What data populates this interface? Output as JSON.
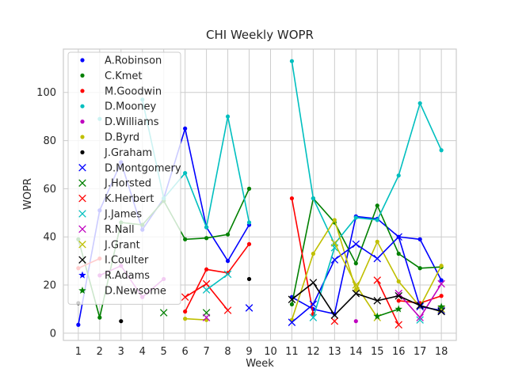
{
  "chart_data": {
    "type": "line",
    "title": "CHI Weekly WOPR",
    "xlabel": "Week",
    "ylabel": "WOPR",
    "xlim": [
      0.3,
      18.7
    ],
    "ylim": [
      -3,
      118
    ],
    "x_ticks": [
      1,
      2,
      3,
      4,
      5,
      6,
      7,
      8,
      9,
      10,
      11,
      12,
      13,
      14,
      15,
      16,
      17,
      18
    ],
    "y_ticks": [
      0,
      20,
      40,
      60,
      80,
      100
    ],
    "grid": true,
    "legend_position": "upper-left",
    "series": [
      {
        "name": "A.Robinson",
        "color": "#0000ff",
        "marker": "dot",
        "x": [
          1,
          2,
          3,
          4,
          5,
          6,
          7,
          8,
          9,
          11,
          12,
          13,
          14,
          15,
          16,
          17,
          18
        ],
        "y": [
          3.5,
          51,
          71,
          43,
          56,
          85,
          44,
          30,
          45,
          15,
          10,
          8,
          48.5,
          47.5,
          40,
          39,
          22
        ]
      },
      {
        "name": "C.Kmet",
        "color": "#008000",
        "marker": "dot",
        "x": [
          1,
          2,
          3,
          4,
          5,
          6,
          7,
          8,
          9,
          11,
          12,
          13,
          14,
          15,
          16,
          17,
          18
        ],
        "y": [
          39,
          6.5,
          46,
          45,
          55,
          39,
          39.5,
          41,
          60,
          12,
          56,
          46,
          29,
          53,
          33,
          27,
          27.5
        ]
      },
      {
        "name": "M.Goodwin",
        "color": "#ff0000",
        "marker": "dot",
        "x": [
          1,
          2,
          6,
          7,
          8,
          9,
          11,
          12,
          16,
          17,
          18
        ],
        "y": [
          27,
          31,
          9,
          26.5,
          25,
          37,
          56,
          8,
          13.5,
          12.5,
          15.5
        ]
      },
      {
        "name": "D.Mooney",
        "color": "#00bfbf",
        "marker": "dot",
        "x": [
          2,
          4,
          5,
          6,
          7,
          8,
          9,
          11,
          12,
          13,
          14,
          15,
          16,
          17,
          18
        ],
        "y": [
          89,
          97,
          56,
          66.5,
          44,
          90,
          46,
          113,
          56,
          37,
          48,
          47,
          65.5,
          95.5,
          76
        ]
      },
      {
        "name": "D.Williams",
        "color": "#bf00bf",
        "marker": "dot",
        "x": [
          2,
          3,
          4,
          5,
          14
        ],
        "y": [
          24,
          28,
          15,
          22.5,
          5
        ]
      },
      {
        "name": "D.Byrd",
        "color": "#bfbf00",
        "marker": "dot",
        "x": [
          6,
          7,
          11,
          12,
          13,
          14,
          15,
          16,
          17,
          18
        ],
        "y": [
          6,
          5.5,
          5.5,
          33,
          47,
          18,
          38,
          21.5,
          11,
          28
        ]
      },
      {
        "name": "J.Graham",
        "color": "#000000",
        "marker": "dot",
        "x": [
          1,
          3,
          9
        ],
        "y": [
          12.5,
          5,
          22.5
        ]
      },
      {
        "name": "D.Montgomery",
        "color": "#0000ff",
        "marker": "x",
        "x": [
          9,
          11,
          12,
          13,
          14,
          15,
          16,
          17,
          18
        ],
        "y": [
          10.5,
          4.5,
          12,
          30.5,
          37,
          31,
          40,
          11,
          9.5
        ]
      },
      {
        "name": "J.Horsted",
        "color": "#008000",
        "marker": "x",
        "x": [
          5,
          7
        ],
        "y": [
          8.5,
          8.5
        ]
      },
      {
        "name": "K.Herbert",
        "color": "#ff0000",
        "marker": "x",
        "x": [
          6,
          7,
          8,
          13,
          15,
          16
        ],
        "y": [
          15,
          20.5,
          9.5,
          5,
          22,
          3.5
        ]
      },
      {
        "name": "J.James",
        "color": "#00bfbf",
        "marker": "x",
        "x": [
          7,
          8,
          12,
          13,
          17
        ],
        "y": [
          18,
          24.5,
          6.5,
          35.5,
          5.5
        ]
      },
      {
        "name": "R.Nall",
        "color": "#bf00bf",
        "marker": "x",
        "x": [
          7,
          16,
          17,
          18
        ],
        "y": [
          6.5,
          16.5,
          6.5,
          20.5
        ]
      },
      {
        "name": "J.Grant",
        "color": "#bfbf00",
        "marker": "x",
        "x": [
          13,
          14,
          15,
          18
        ],
        "y": [
          37.5,
          20,
          6.5,
          10
        ]
      },
      {
        "name": "I.Coulter",
        "color": "#000000",
        "marker": "x",
        "x": [
          11,
          12,
          13,
          14,
          15,
          16,
          17,
          18
        ],
        "y": [
          14,
          21,
          7.5,
          16.5,
          13.5,
          15.5,
          11.5,
          9
        ]
      },
      {
        "name": "R.Adams",
        "color": "#0000ff",
        "marker": "star",
        "x": [],
        "y": []
      },
      {
        "name": "D.Newsome",
        "color": "#008000",
        "marker": "star",
        "x": [
          15,
          16,
          18
        ],
        "y": [
          7,
          10,
          11
        ]
      }
    ]
  }
}
